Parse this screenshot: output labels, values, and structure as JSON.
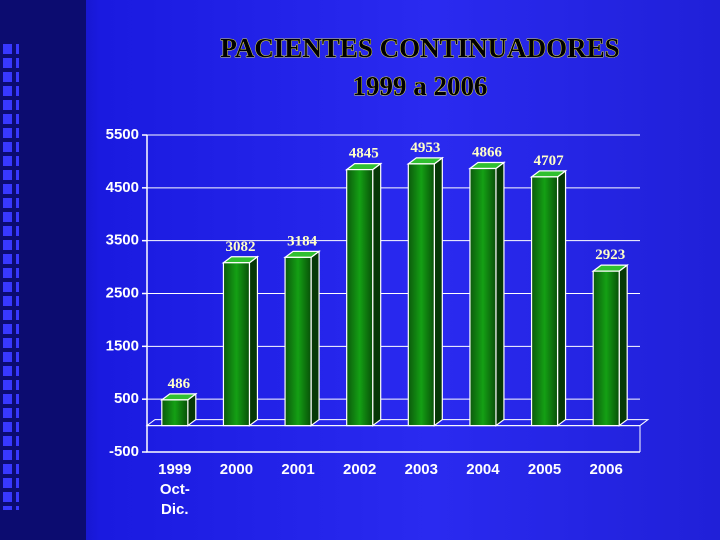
{
  "chart_data": {
    "type": "bar",
    "title": "PACIENTES CONTINUADORES",
    "subtitle": "1999 a 2006",
    "categories": [
      "1999 Oct-Dic.",
      "2000",
      "2001",
      "2002",
      "2003",
      "2004",
      "2005",
      "2006"
    ],
    "values": [
      486,
      3082,
      3184,
      4845,
      4953,
      4866,
      4707,
      2923
    ],
    "color": "#0a7a0a",
    "ylim": [
      -500,
      5500
    ],
    "yticks": [
      -500,
      500,
      1500,
      2500,
      3500,
      4500,
      5500
    ],
    "grid": true
  }
}
